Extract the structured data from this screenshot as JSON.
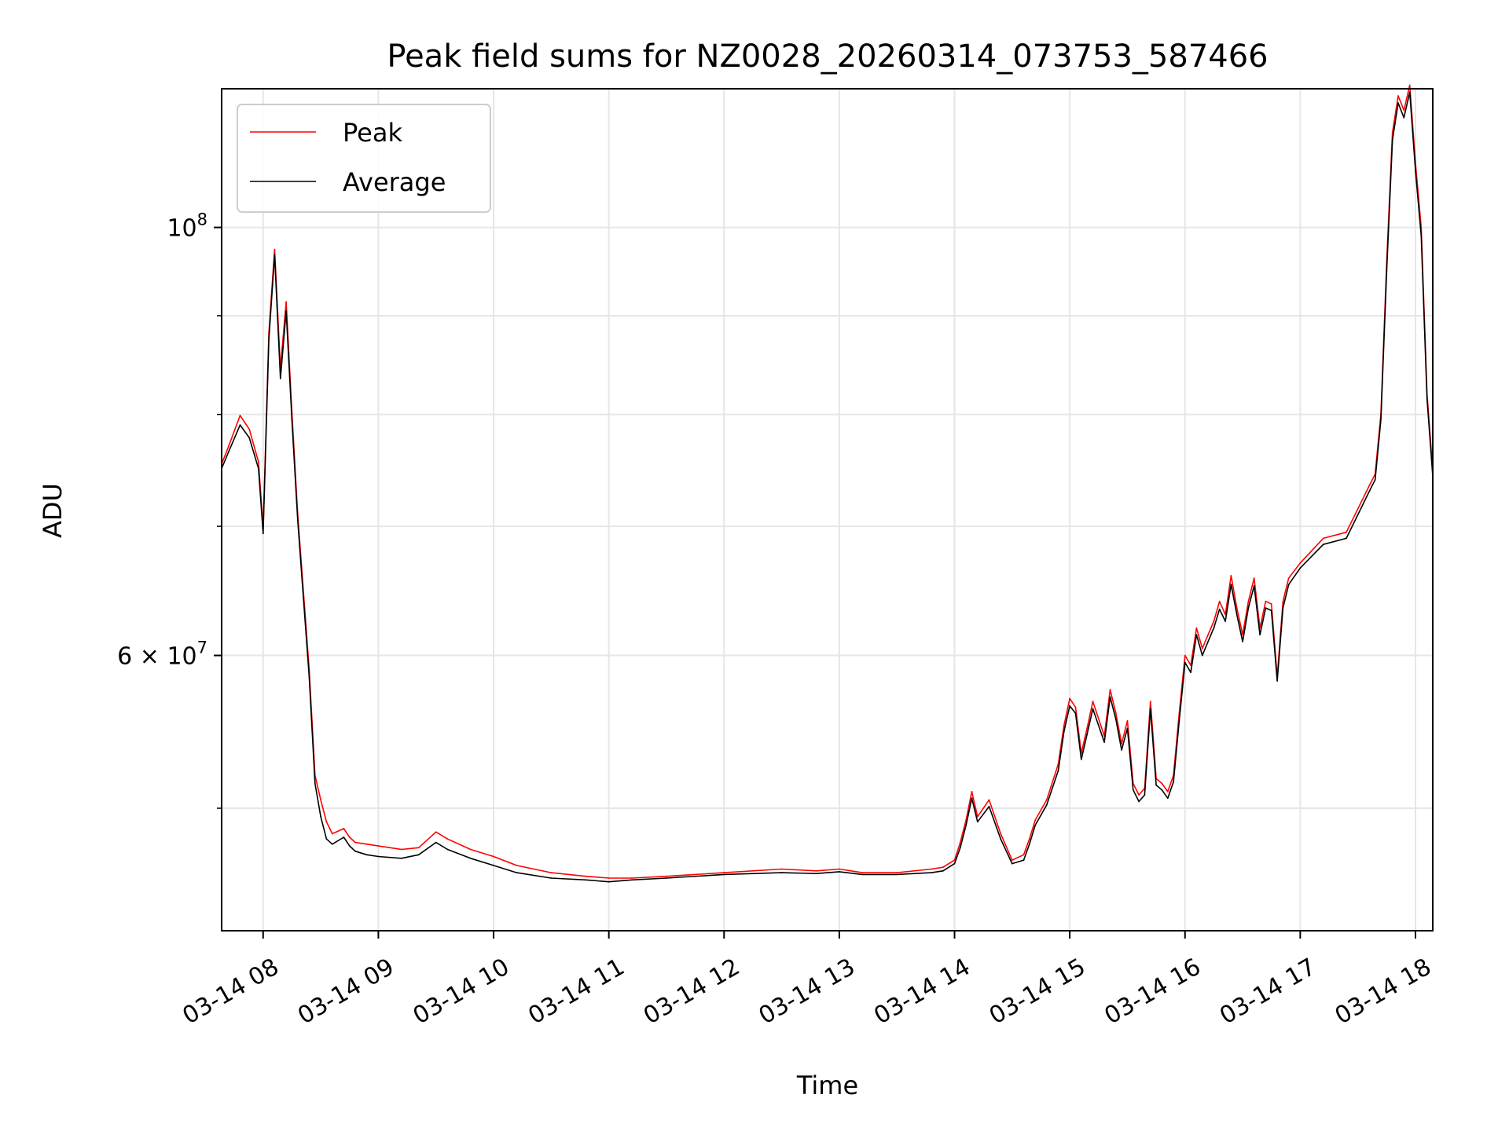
{
  "chart_data": {
    "type": "line",
    "title": "Peak field sums for NZ0028_20260314_073753_587466",
    "xlabel": "Time",
    "ylabel": "ADU",
    "yscale": "log",
    "grid": true,
    "legend_position": "upper-left",
    "xlim_hours": [
      7.64,
      18.15
    ],
    "ylim": [
      43200000,
      118000000
    ],
    "x_ticks": [
      {
        "value": 8,
        "label": "03-14 08"
      },
      {
        "value": 9,
        "label": "03-14 09"
      },
      {
        "value": 10,
        "label": "03-14 10"
      },
      {
        "value": 11,
        "label": "03-14 11"
      },
      {
        "value": 12,
        "label": "03-14 12"
      },
      {
        "value": 13,
        "label": "03-14 13"
      },
      {
        "value": 14,
        "label": "03-14 14"
      },
      {
        "value": 15,
        "label": "03-14 15"
      },
      {
        "value": 16,
        "label": "03-14 16"
      },
      {
        "value": 17,
        "label": "03-14 17"
      },
      {
        "value": 18,
        "label": "03-14 18"
      }
    ],
    "y_major_ticks": [
      {
        "value": 100000000,
        "mantissa": "",
        "base": "10",
        "exponent": "8"
      },
      {
        "value": 60000000,
        "mantissa": "6 × ",
        "base": "10",
        "exponent": "7"
      }
    ],
    "y_minor_ticks": [
      50000000,
      70000000,
      80000000,
      90000000
    ],
    "x_time_unit": "hours of day 2026-03-14",
    "series": [
      {
        "name": "Peak",
        "color": "#ff0000",
        "x": [
          7.64,
          7.7,
          7.8,
          7.88,
          7.96,
          8.0,
          8.05,
          8.1,
          8.15,
          8.2,
          8.25,
          8.3,
          8.4,
          8.45,
          8.5,
          8.55,
          8.6,
          8.7,
          8.75,
          8.8,
          8.9,
          9.0,
          9.2,
          9.35,
          9.5,
          9.6,
          9.8,
          10.0,
          10.2,
          10.5,
          10.8,
          11.0,
          11.2,
          11.5,
          12.0,
          12.5,
          12.8,
          13.0,
          13.2,
          13.5,
          13.8,
          13.9,
          14.0,
          14.05,
          14.1,
          14.15,
          14.2,
          14.3,
          14.4,
          14.5,
          14.6,
          14.65,
          14.7,
          14.8,
          14.9,
          14.95,
          15.0,
          15.05,
          15.1,
          15.15,
          15.2,
          15.3,
          15.35,
          15.4,
          15.45,
          15.5,
          15.55,
          15.6,
          15.65,
          15.7,
          15.75,
          15.8,
          15.85,
          15.9,
          15.95,
          16.0,
          16.05,
          16.1,
          16.15,
          16.2,
          16.25,
          16.3,
          16.35,
          16.4,
          16.45,
          16.5,
          16.55,
          16.6,
          16.65,
          16.7,
          16.75,
          16.8,
          16.85,
          16.9,
          17.0,
          17.2,
          17.4,
          17.6,
          17.65,
          17.7,
          17.75,
          17.8,
          17.85,
          17.9,
          17.95,
          18.0,
          18.05,
          18.1,
          18.15
        ],
        "values": [
          75400000,
          77000000,
          79900000,
          78600000,
          75600000,
          69800000,
          88200000,
          97400000,
          84500000,
          91500000,
          80200000,
          71000000,
          59000000,
          52000000,
          50500000,
          49200000,
          48500000,
          48800000,
          48300000,
          48000000,
          47900000,
          47800000,
          47600000,
          47700000,
          48600000,
          48200000,
          47600000,
          47200000,
          46700000,
          46300000,
          46100000,
          46000000,
          46000000,
          46100000,
          46300000,
          46500000,
          46400000,
          46500000,
          46300000,
          46300000,
          46500000,
          46600000,
          47000000,
          48000000,
          49300000,
          51000000,
          49500000,
          50500000,
          48500000,
          47000000,
          47300000,
          48200000,
          49300000,
          50500000,
          52700000,
          55200000,
          57000000,
          56400000,
          53400000,
          55000000,
          56800000,
          54500000,
          57600000,
          56000000,
          54000000,
          55500000,
          51500000,
          50800000,
          51200000,
          56800000,
          51800000,
          51500000,
          51000000,
          52000000,
          56000000,
          60000000,
          59300000,
          62000000,
          60500000,
          61500000,
          62500000,
          64000000,
          63000000,
          66000000,
          63500000,
          61500000,
          64000000,
          65800000,
          62000000,
          64000000,
          63800000,
          58500000,
          64000000,
          65800000,
          67000000,
          69000000,
          69500000,
          73500000,
          74500000,
          80000000,
          96000000,
          112000000,
          117000000,
          115000000,
          118500000,
          108000000,
          100000000,
          82000000,
          74800000
        ]
      },
      {
        "name": "Average",
        "color": "#000000",
        "x": [
          7.64,
          7.7,
          7.8,
          7.88,
          7.96,
          8.0,
          8.05,
          8.1,
          8.15,
          8.2,
          8.25,
          8.3,
          8.4,
          8.45,
          8.5,
          8.55,
          8.6,
          8.7,
          8.75,
          8.8,
          8.9,
          9.0,
          9.2,
          9.35,
          9.5,
          9.6,
          9.8,
          10.0,
          10.2,
          10.5,
          10.8,
          11.0,
          11.2,
          11.5,
          12.0,
          12.5,
          12.8,
          13.0,
          13.2,
          13.5,
          13.8,
          13.9,
          14.0,
          14.05,
          14.1,
          14.15,
          14.2,
          14.3,
          14.4,
          14.5,
          14.6,
          14.65,
          14.7,
          14.8,
          14.9,
          14.95,
          15.0,
          15.05,
          15.1,
          15.15,
          15.2,
          15.3,
          15.35,
          15.4,
          15.45,
          15.5,
          15.55,
          15.6,
          15.65,
          15.7,
          15.75,
          15.8,
          15.85,
          15.9,
          15.95,
          16.0,
          16.05,
          16.1,
          16.15,
          16.2,
          16.25,
          16.3,
          16.35,
          16.4,
          16.45,
          16.5,
          16.55,
          16.6,
          16.65,
          16.7,
          16.75,
          16.8,
          16.85,
          16.9,
          17.0,
          17.2,
          17.4,
          17.6,
          17.65,
          17.7,
          17.75,
          17.8,
          17.85,
          17.9,
          17.95,
          18.0,
          18.05,
          18.1,
          18.15
        ],
        "values": [
          75000000,
          76500000,
          79000000,
          77800000,
          75000000,
          69400000,
          87500000,
          96800000,
          83500000,
          90500000,
          79500000,
          70500000,
          58500000,
          51500000,
          49500000,
          48200000,
          47900000,
          48300000,
          47800000,
          47500000,
          47300000,
          47200000,
          47100000,
          47300000,
          48000000,
          47600000,
          47100000,
          46700000,
          46300000,
          46000000,
          45900000,
          45800000,
          45900000,
          46000000,
          46200000,
          46300000,
          46250000,
          46350000,
          46200000,
          46200000,
          46300000,
          46400000,
          46800000,
          47700000,
          49000000,
          50600000,
          49200000,
          50100000,
          48200000,
          46800000,
          47000000,
          47900000,
          49000000,
          50200000,
          52300000,
          54800000,
          56500000,
          56000000,
          53000000,
          54600000,
          56300000,
          54100000,
          57100000,
          55600000,
          53600000,
          55000000,
          51100000,
          50400000,
          50800000,
          56300000,
          51400000,
          51100000,
          50600000,
          51600000,
          55500000,
          59500000,
          58800000,
          61500000,
          60000000,
          61000000,
          62000000,
          63400000,
          62500000,
          65300000,
          63000000,
          61000000,
          63500000,
          65200000,
          61500000,
          63500000,
          63300000,
          58200000,
          63500000,
          65300000,
          66600000,
          68500000,
          69000000,
          73000000,
          74000000,
          79500000,
          95000000,
          111000000,
          116000000,
          114000000,
          117500000,
          107000000,
          99000000,
          81500000,
          74300000
        ]
      }
    ]
  }
}
